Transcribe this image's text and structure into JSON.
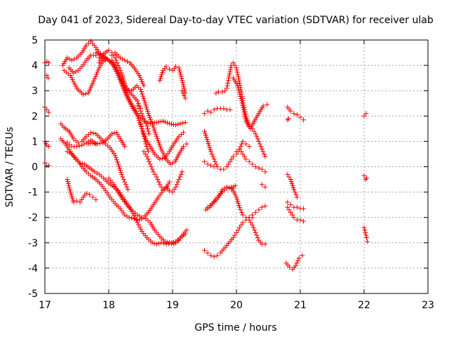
{
  "chart_data": {
    "type": "scatter",
    "title": "Day 041 of 2023, Sidereal Day-to-day VTEC variation (SDTVAR) for receiver ulab",
    "xlabel": "GPS time / hours",
    "ylabel": "SDTVAR / TECUs",
    "xlim": [
      17,
      23
    ],
    "ylim": [
      -5,
      5
    ],
    "xticks": [
      "17",
      "18",
      "19",
      "20",
      "21",
      "22",
      "23"
    ],
    "yticks": [
      "5",
      "4",
      "3",
      "2",
      "1",
      "0",
      "-1",
      "-2",
      "-3",
      "-4",
      "-5"
    ],
    "grid": true,
    "marker": "+",
    "color": "#ff0000",
    "series": [
      {
        "name": "s01",
        "x": [
          17.0,
          17.03,
          17.06
        ],
        "y": [
          4.1,
          4.15,
          4.1
        ]
      },
      {
        "name": "s02",
        "x": [
          17.03,
          17.05
        ],
        "y": [
          3.6,
          3.5
        ]
      },
      {
        "name": "s03",
        "x": [
          17.0,
          17.03,
          17.06
        ],
        "y": [
          2.35,
          2.25,
          2.15
        ]
      },
      {
        "name": "s04",
        "x": [
          17.0,
          17.03,
          17.06
        ],
        "y": [
          1.0,
          0.85,
          0.8
        ]
      },
      {
        "name": "s05",
        "x": [
          17.0,
          17.03,
          17.06
        ],
        "y": [
          0.15,
          0.05,
          0.05
        ]
      },
      {
        "name": "s06",
        "x": [
          17.3,
          17.4,
          17.5,
          17.6,
          17.68,
          17.75,
          17.85,
          17.95,
          18.05,
          18.15,
          18.25,
          18.35,
          18.45,
          18.55,
          18.65,
          18.75,
          18.85,
          18.95,
          19.05,
          19.12,
          19.2
        ],
        "y": [
          3.8,
          3.6,
          3.1,
          2.85,
          2.9,
          3.3,
          3.9,
          4.3,
          4.1,
          3.6,
          3.0,
          2.5,
          2.1,
          1.8,
          1.7,
          1.75,
          1.8,
          1.7,
          1.65,
          1.7,
          1.75
        ]
      },
      {
        "name": "s07",
        "x": [
          17.28,
          17.35,
          17.42,
          17.5,
          17.58,
          17.65,
          17.72,
          17.8,
          17.88,
          17.95
        ],
        "y": [
          4.0,
          4.3,
          4.2,
          4.3,
          4.5,
          4.8,
          4.95,
          4.7,
          4.4,
          4.2
        ]
      },
      {
        "name": "s08",
        "x": [
          17.8,
          17.9,
          18.0,
          18.08,
          18.15,
          18.22,
          18.3,
          18.38,
          18.45,
          18.52,
          18.58,
          18.65,
          18.72,
          18.8,
          18.88,
          18.95,
          19.02,
          19.1,
          19.17
        ],
        "y": [
          4.5,
          4.4,
          4.2,
          4.0,
          3.6,
          3.2,
          2.7,
          2.3,
          2.0,
          1.5,
          1.1,
          0.8,
          0.5,
          0.3,
          0.35,
          0.6,
          0.9,
          1.2,
          1.35
        ]
      },
      {
        "name": "s09",
        "x": [
          17.85,
          17.92,
          18.0,
          18.05,
          18.1,
          18.15,
          18.2,
          18.25,
          18.3,
          18.38,
          18.45,
          18.5
        ],
        "y": [
          4.1,
          4.45,
          4.6,
          4.5,
          4.3,
          4.0,
          3.7,
          3.3,
          3.0,
          2.8,
          2.6,
          2.3
        ]
      },
      {
        "name": "s10",
        "x": [
          18.05,
          18.12,
          18.2,
          18.28,
          18.36,
          18.44,
          18.5,
          18.56,
          18.62,
          18.68,
          18.75,
          18.82,
          18.9,
          18.97,
          19.04,
          19.1,
          19.17,
          19.22
        ],
        "y": [
          4.2,
          3.9,
          3.4,
          3.05,
          3.0,
          3.2,
          3.05,
          2.6,
          2.1,
          1.7,
          1.2,
          0.7,
          0.3,
          0.1,
          0.2,
          0.5,
          0.8,
          0.9
        ]
      },
      {
        "name": "s11",
        "x": [
          18.05,
          18.1,
          18.18,
          18.25,
          18.33,
          18.4,
          18.48,
          18.55
        ],
        "y": [
          4.4,
          4.5,
          4.3,
          4.2,
          4.1,
          3.9,
          3.6,
          3.2
        ]
      },
      {
        "name": "s12",
        "x": [
          17.38,
          17.45,
          17.52,
          17.58,
          17.65,
          17.72,
          17.8,
          17.85
        ],
        "y": [
          3.9,
          3.7,
          3.8,
          3.95,
          4.2,
          4.4,
          4.4,
          4.3
        ]
      },
      {
        "name": "s13",
        "x": [
          18.45,
          18.5,
          18.55,
          18.6,
          18.63
        ],
        "y": [
          2.4,
          2.2,
          1.9,
          1.6,
          1.3
        ]
      },
      {
        "name": "s14",
        "x": [
          18.5,
          18.52,
          18.55,
          18.58,
          18.62
        ],
        "y": [
          1.7,
          1.5,
          1.2,
          0.9,
          0.6
        ]
      },
      {
        "name": "s15",
        "x": [
          18.8,
          18.85,
          18.9,
          18.95,
          19.0,
          19.05,
          19.1,
          19.15,
          19.2
        ],
        "y": [
          3.4,
          3.8,
          3.95,
          3.85,
          3.8,
          3.95,
          3.9,
          3.4,
          2.9
        ]
      },
      {
        "name": "s16",
        "x": [
          19.15,
          19.18,
          19.2
        ],
        "y": [
          3.0,
          2.8,
          2.7
        ]
      },
      {
        "name": "s17",
        "x": [
          17.25,
          17.3,
          17.38,
          17.45,
          17.52,
          17.58,
          17.65,
          17.72,
          17.8,
          17.88,
          17.95,
          18.02,
          18.1,
          18.15,
          18.2,
          18.25,
          18.3
        ],
        "y": [
          1.7,
          1.55,
          1.4,
          1.1,
          0.95,
          1.0,
          1.2,
          1.35,
          1.3,
          1.1,
          0.9,
          0.75,
          0.45,
          0.1,
          -0.3,
          -0.6,
          -0.9
        ]
      },
      {
        "name": "s18",
        "x": [
          17.25,
          17.32,
          17.4,
          17.48,
          17.55,
          17.62,
          17.7,
          17.78,
          17.85,
          17.92,
          18.0,
          18.08,
          18.15,
          18.22,
          18.3,
          18.38,
          18.45,
          18.52,
          18.6,
          18.68,
          18.75,
          18.82,
          18.9,
          18.98,
          19.05,
          19.12,
          19.2
        ],
        "y": [
          1.1,
          0.9,
          0.6,
          0.3,
          0.15,
          0.1,
          -0.05,
          -0.2,
          -0.3,
          -0.45,
          -0.65,
          -0.8,
          -0.95,
          -1.2,
          -1.5,
          -1.85,
          -2.2,
          -2.55,
          -2.8,
          -3.0,
          -3.05,
          -3.0,
          -3.05,
          -3.0,
          -2.95,
          -2.8,
          -2.65
        ]
      },
      {
        "name": "s19",
        "x": [
          17.35,
          17.42,
          17.5,
          17.58,
          17.65,
          17.72,
          17.8,
          17.88,
          17.95,
          18.02,
          18.1,
          18.18,
          18.25,
          18.32,
          18.4,
          18.48,
          18.55,
          18.62,
          18.7,
          18.78,
          18.85,
          18.9,
          18.95,
          19.0,
          19.05,
          19.1,
          19.15
        ],
        "y": [
          0.6,
          0.5,
          0.3,
          0.0,
          -0.2,
          -0.35,
          -0.5,
          -0.7,
          -0.95,
          -1.2,
          -1.45,
          -1.65,
          -1.9,
          -2.0,
          -2.05,
          -2.1,
          -2.0,
          -1.8,
          -1.5,
          -1.2,
          -0.95,
          -0.8,
          -0.95,
          -1.0,
          -0.8,
          -0.5,
          -0.2
        ]
      },
      {
        "name": "s20",
        "x": [
          17.35,
          17.42,
          17.5,
          17.58,
          17.65,
          17.72,
          17.8
        ],
        "y": [
          0.95,
          0.8,
          0.8,
          0.85,
          0.95,
          1.05,
          0.9
        ]
      },
      {
        "name": "s21",
        "x": [
          17.68,
          17.75,
          17.82,
          17.9,
          17.98,
          18.05,
          18.12,
          18.18,
          18.25
        ],
        "y": [
          0.9,
          0.95,
          0.9,
          0.95,
          1.1,
          1.3,
          1.35,
          1.1,
          0.8
        ]
      },
      {
        "name": "s22",
        "x": [
          17.35,
          17.4,
          17.45,
          17.5,
          17.55,
          17.6,
          17.65,
          17.7,
          17.75,
          17.8
        ],
        "y": [
          -0.5,
          -1.0,
          -1.4,
          -1.35,
          -1.4,
          -1.2,
          -1.05,
          -1.1,
          -1.2,
          -1.3
        ]
      },
      {
        "name": "s23",
        "x": [
          18.0,
          18.08,
          18.15,
          18.22,
          18.3,
          18.38,
          18.45,
          18.52,
          18.58,
          18.65,
          18.72,
          18.8,
          18.88,
          18.95,
          19.02,
          19.1,
          19.17,
          19.22
        ],
        "y": [
          -0.45,
          -0.7,
          -1.0,
          -1.3,
          -1.55,
          -1.75,
          -1.9,
          -2.0,
          -2.05,
          -2.2,
          -2.5,
          -2.75,
          -2.95,
          -3.0,
          -3.05,
          -2.9,
          -2.65,
          -2.5
        ]
      },
      {
        "name": "s24",
        "x": [
          18.55,
          18.6,
          18.65,
          18.7,
          18.75,
          18.8,
          18.85,
          18.9,
          18.95
        ],
        "y": [
          0.6,
          0.4,
          0.1,
          -0.2,
          -0.4,
          -0.7,
          -0.9,
          -0.85,
          -0.6
        ]
      },
      {
        "name": "s25",
        "x": [
          19.5,
          19.55,
          19.6,
          19.65,
          19.7,
          19.75,
          19.8,
          19.85,
          19.9
        ],
        "y": [
          2.1,
          2.2,
          2.15,
          2.25,
          2.3,
          2.3,
          2.3,
          2.25,
          2.25
        ]
      },
      {
        "name": "s26",
        "x": [
          19.68,
          19.72,
          19.78,
          19.82,
          19.85,
          19.88,
          19.92,
          19.95,
          20.0,
          20.05,
          20.1,
          20.15,
          20.2,
          20.25,
          20.3,
          20.35,
          20.4,
          20.45
        ],
        "y": [
          2.9,
          2.95,
          2.95,
          3.0,
          3.1,
          3.5,
          4.0,
          4.1,
          3.9,
          3.3,
          2.6,
          2.0,
          1.6,
          1.5,
          1.3,
          1.0,
          0.7,
          0.4
        ]
      },
      {
        "name": "s27",
        "x": [
          19.95,
          20.02,
          20.08,
          20.15,
          20.22,
          20.28,
          20.35,
          20.42,
          20.48
        ],
        "y": [
          3.5,
          3.2,
          2.6,
          1.8,
          1.5,
          1.8,
          2.1,
          2.4,
          2.45
        ]
      },
      {
        "name": "s28",
        "x": [
          19.5,
          19.55,
          19.6,
          19.65,
          19.7,
          19.75,
          19.8,
          19.85,
          19.9,
          19.95,
          20.0,
          20.05,
          20.1,
          20.15,
          20.2
        ],
        "y": [
          1.4,
          1.0,
          0.6,
          0.3,
          0.0,
          -0.1,
          -0.1,
          0.0,
          0.2,
          0.4,
          0.5,
          0.7,
          1.0,
          0.9,
          0.8
        ]
      },
      {
        "name": "s29",
        "x": [
          19.5,
          19.55,
          19.6,
          19.65
        ],
        "y": [
          0.2,
          0.1,
          0.05,
          0.0
        ]
      },
      {
        "name": "s30",
        "x": [
          20.0,
          20.05,
          20.1,
          20.15,
          20.2,
          20.25,
          20.3,
          20.35,
          20.4,
          20.45
        ],
        "y": [
          0.6,
          0.7,
          0.5,
          0.3,
          0.2,
          0.1,
          0.0,
          -0.05,
          -0.1,
          -0.2
        ]
      },
      {
        "name": "s31",
        "x": [
          20.4,
          20.45
        ],
        "y": [
          -0.7,
          -0.8
        ]
      },
      {
        "name": "s32",
        "x": [
          19.52,
          19.58,
          19.65,
          19.72,
          19.78,
          19.85,
          19.92,
          19.98
        ],
        "y": [
          -1.7,
          -1.6,
          -1.4,
          -1.2,
          -0.9,
          -0.8,
          -0.85,
          -0.75
        ]
      },
      {
        "name": "s33",
        "x": [
          19.55,
          19.62,
          19.7,
          19.78,
          19.85,
          19.92,
          20.0,
          20.05,
          20.1,
          20.15,
          20.2,
          20.25,
          20.3,
          20.35,
          20.4,
          20.45
        ],
        "y": [
          -1.6,
          -1.45,
          -1.2,
          -1.0,
          -0.85,
          -0.8,
          -1.2,
          -1.6,
          -1.9,
          -2.0,
          -2.0,
          -1.9,
          -1.8,
          -1.7,
          -1.6,
          -1.55
        ]
      },
      {
        "name": "s34",
        "x": [
          19.5,
          19.55,
          19.6,
          19.65,
          19.7,
          19.75,
          19.8,
          19.85,
          19.9,
          19.95,
          20.0,
          20.05,
          20.1,
          20.15,
          20.2,
          20.25
        ],
        "y": [
          -3.3,
          -3.4,
          -3.5,
          -3.55,
          -3.5,
          -3.4,
          -3.25,
          -3.1,
          -2.95,
          -2.8,
          -2.6,
          -2.4,
          -2.2,
          -2.1,
          -2.0,
          -2.0
        ]
      },
      {
        "name": "s35",
        "x": [
          20.2,
          20.25,
          20.3,
          20.35,
          20.4,
          20.45
        ],
        "y": [
          -2.1,
          -2.3,
          -2.6,
          -2.9,
          -3.05,
          -3.05
        ]
      },
      {
        "name": "s36",
        "x": [
          20.8,
          20.85,
          20.9,
          20.95,
          21.0,
          21.05
        ],
        "y": [
          2.35,
          2.2,
          2.1,
          2.05,
          1.95,
          1.85
        ]
      },
      {
        "name": "s37",
        "x": [
          20.8,
          20.82
        ],
        "y": [
          1.85,
          1.9
        ]
      },
      {
        "name": "s38",
        "x": [
          20.8,
          20.85,
          20.9,
          20.95
        ],
        "y": [
          -0.3,
          -0.5,
          -0.9,
          -1.2
        ]
      },
      {
        "name": "s39",
        "x": [
          20.8,
          20.85,
          20.9,
          20.95,
          21.0,
          21.05
        ],
        "y": [
          -1.4,
          -1.5,
          -1.6,
          -1.6,
          -1.65,
          -1.65
        ]
      },
      {
        "name": "s40",
        "x": [
          20.8,
          20.85,
          20.9,
          20.95,
          21.0,
          21.05
        ],
        "y": [
          -1.6,
          -1.8,
          -2.0,
          -2.1,
          -2.1,
          -2.15
        ]
      },
      {
        "name": "s41",
        "x": [
          20.78,
          20.83,
          20.88,
          20.93,
          20.98,
          21.03
        ],
        "y": [
          -3.8,
          -3.95,
          -4.05,
          -3.9,
          -3.6,
          -3.5
        ]
      },
      {
        "name": "s42",
        "x": [
          22.0,
          22.03
        ],
        "y": [
          2.0,
          2.1
        ]
      },
      {
        "name": "s43",
        "x": [
          22.0,
          22.02,
          22.04
        ],
        "y": [
          -0.35,
          -0.5,
          -0.45
        ]
      },
      {
        "name": "s44",
        "x": [
          22.0,
          22.02,
          22.04,
          22.05
        ],
        "y": [
          -2.4,
          -2.6,
          -2.8,
          -2.95
        ]
      }
    ]
  }
}
